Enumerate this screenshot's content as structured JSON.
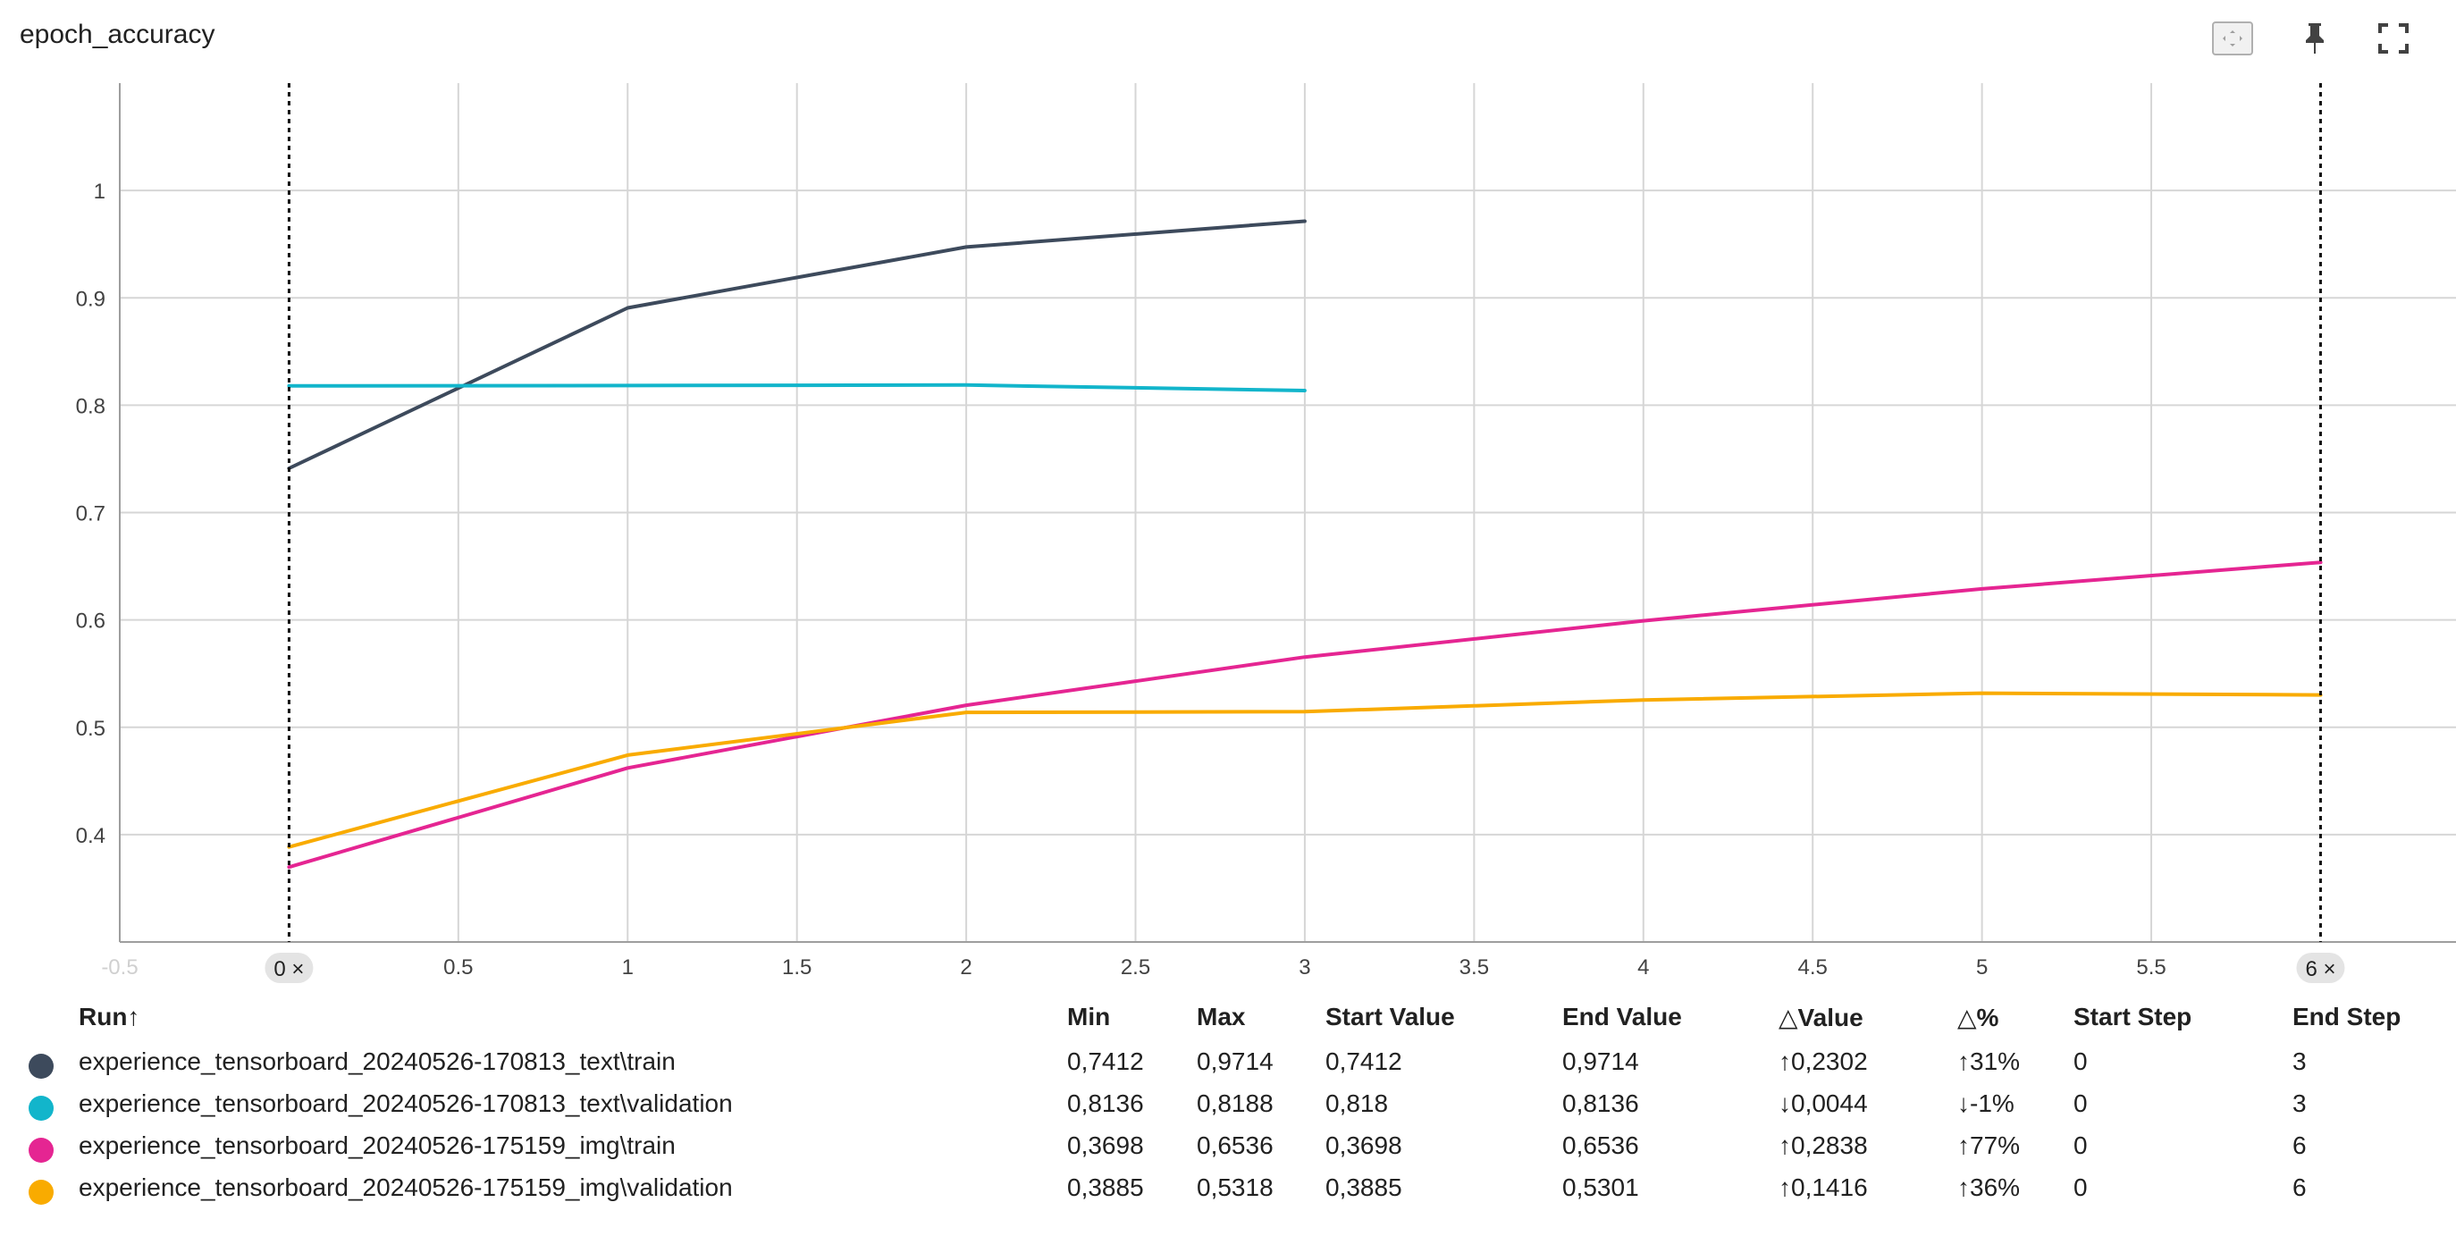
{
  "header": {
    "title": "epoch_accuracy"
  },
  "toolbar": {
    "icons": [
      "fit-domain-icon",
      "pin-icon",
      "fullscreen-icon"
    ]
  },
  "chart_data": {
    "type": "line",
    "title": "epoch_accuracy",
    "xlabel": "",
    "ylabel": "",
    "xlim": [
      -0.5,
      6.4
    ],
    "ylim": [
      0.3,
      1.1
    ],
    "x_ticks": [
      "-0.5",
      "0",
      "0.5",
      "1",
      "1.5",
      "2",
      "2.5",
      "3",
      "3.5",
      "4",
      "4.5",
      "5",
      "5.5",
      "6"
    ],
    "y_ticks": [
      "0.4",
      "0.5",
      "0.6",
      "0.7",
      "0.8",
      "0.9",
      "1"
    ],
    "grid": true,
    "step_markers": [
      {
        "label": "0",
        "x": 0
      },
      {
        "label": "6",
        "x": 6
      }
    ],
    "series": [
      {
        "name": "experience_tensorboard_20240526-170813_text\\train",
        "color": "#3d4a5c",
        "x": [
          0,
          1,
          2,
          3
        ],
        "y": [
          0.7412,
          0.8906,
          0.9473,
          0.9714
        ]
      },
      {
        "name": "experience_tensorboard_20240526-170813_text\\validation",
        "color": "#12b5cb",
        "x": [
          0,
          1,
          2,
          3
        ],
        "y": [
          0.818,
          0.8183,
          0.8188,
          0.8136
        ]
      },
      {
        "name": "experience_tensorboard_20240526-175159_img\\train",
        "color": "#e52592",
        "x": [
          0,
          1,
          2,
          3,
          4,
          5,
          6
        ],
        "y": [
          0.3698,
          0.4621,
          0.5205,
          0.5654,
          0.5992,
          0.6289,
          0.6536
        ]
      },
      {
        "name": "experience_tensorboard_20240526-175159_img\\validation",
        "color": "#f9ab00",
        "x": [
          0,
          1,
          2,
          3,
          4,
          5,
          6
        ],
        "y": [
          0.3885,
          0.4741,
          0.5139,
          0.5145,
          0.5254,
          0.5318,
          0.5301
        ]
      }
    ]
  },
  "table": {
    "headers": {
      "run": "Run↑",
      "min": "Min",
      "max": "Max",
      "start_value": "Start Value",
      "end_value": "End Value",
      "delta_value": "△Value",
      "delta_pct": "△%",
      "start_step": "Start Step",
      "end_step": "End Step"
    },
    "rows": [
      {
        "run": "experience_tensorboard_20240526-170813_text\\train",
        "color": "#3d4a5c",
        "min": "0,7412",
        "max": "0,9714",
        "start_value": "0,7412",
        "end_value": "0,9714",
        "delta_value": "↑0,2302",
        "delta_pct": "↑31%",
        "start_step": "0",
        "end_step": "3"
      },
      {
        "run": "experience_tensorboard_20240526-170813_text\\validation",
        "color": "#12b5cb",
        "min": "0,8136",
        "max": "0,8188",
        "start_value": "0,818",
        "end_value": "0,8136",
        "delta_value": "↓0,0044",
        "delta_pct": "↓-1%",
        "start_step": "0",
        "end_step": "3"
      },
      {
        "run": "experience_tensorboard_20240526-175159_img\\train",
        "color": "#e52592",
        "min": "0,3698",
        "max": "0,6536",
        "start_value": "0,3698",
        "end_value": "0,6536",
        "delta_value": "↑0,2838",
        "delta_pct": "↑77%",
        "start_step": "0",
        "end_step": "6"
      },
      {
        "run": "experience_tensorboard_20240526-175159_img\\validation",
        "color": "#f9ab00",
        "min": "0,3885",
        "max": "0,5318",
        "start_value": "0,3885",
        "end_value": "0,5301",
        "delta_value": "↑0,1416",
        "delta_pct": "↑36%",
        "start_step": "0",
        "end_step": "6"
      }
    ]
  }
}
